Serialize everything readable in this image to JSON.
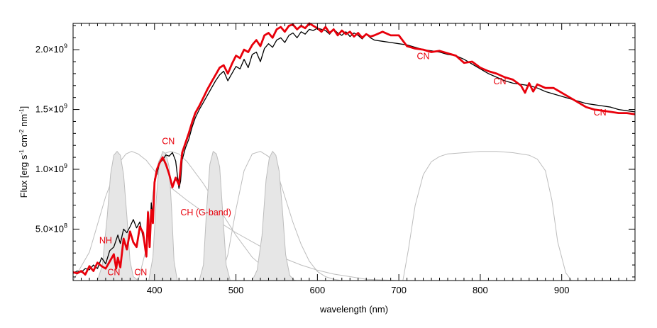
{
  "chart_data": {
    "type": "line",
    "xlabel": "wavelength (nm)",
    "ylabel": {
      "prefix": "Flux [erg s",
      "exp1": "-1",
      "mid1": " cm",
      "exp2": "-2",
      "mid2": " nm",
      "exp3": "-1",
      "suffix": "]"
    },
    "xlim": [
      300,
      990
    ],
    "ylim": [
      70000000,
      2220000000
    ],
    "x_ticks": [
      {
        "value": 400,
        "label": "400"
      },
      {
        "value": 500,
        "label": "500"
      },
      {
        "value": 600,
        "label": "600"
      },
      {
        "value": 700,
        "label": "700"
      },
      {
        "value": 800,
        "label": "800"
      },
      {
        "value": 900,
        "label": "900"
      }
    ],
    "y_ticks": [
      {
        "value": 500000000,
        "mantissa": "5.0×10",
        "exp": "8"
      },
      {
        "value": 1000000000,
        "mantissa": "1.0×10",
        "exp": "9"
      },
      {
        "value": 1500000000,
        "mantissa": "1.5×10",
        "exp": "9"
      },
      {
        "value": 2000000000,
        "mantissa": "2.0×10",
        "exp": "9"
      }
    ],
    "grid": false,
    "colors": {
      "model": "#e8000b",
      "observed": "#000000",
      "filters": "#bdbdbd",
      "filter_fill": "#e6e6e6"
    },
    "series": [
      {
        "color": "#000000",
        "x": [
          300,
          305,
          310,
          315,
          320,
          325,
          330,
          335,
          340,
          345,
          350,
          355,
          358,
          362,
          366,
          370,
          374,
          378,
          382,
          386,
          390,
          392,
          394,
          396,
          398,
          400,
          403,
          406,
          410,
          414,
          418,
          422,
          426,
          430,
          432,
          434,
          438,
          442,
          446,
          450,
          455,
          460,
          465,
          470,
          475,
          480,
          485,
          490,
          495,
          500,
          505,
          510,
          515,
          520,
          525,
          530,
          535,
          540,
          545,
          550,
          555,
          560,
          565,
          570,
          575,
          580,
          585,
          590,
          595,
          600,
          605,
          610,
          615,
          620,
          625,
          630,
          635,
          640,
          645,
          650,
          655,
          660,
          665,
          670,
          680,
          690,
          700,
          710,
          720,
          730,
          740,
          750,
          760,
          770,
          780,
          790,
          800,
          810,
          820,
          830,
          840,
          850,
          860,
          870,
          880,
          890,
          900,
          910,
          920,
          930,
          940,
          950,
          960,
          970,
          980,
          990
        ],
        "y": [
          130000000,
          150000000,
          140000000,
          170000000,
          160000000,
          200000000,
          170000000,
          260000000,
          210000000,
          320000000,
          350000000,
          450000000,
          380000000,
          500000000,
          470000000,
          520000000,
          580000000,
          510000000,
          560000000,
          430000000,
          300000000,
          650000000,
          380000000,
          720000000,
          600000000,
          920000000,
          960000000,
          1050000000,
          1080000000,
          1120000000,
          1110000000,
          1140000000,
          1070000000,
          840000000,
          900000000,
          1080000000,
          1180000000,
          1250000000,
          1350000000,
          1430000000,
          1500000000,
          1560000000,
          1620000000,
          1680000000,
          1740000000,
          1790000000,
          1820000000,
          1740000000,
          1800000000,
          1860000000,
          1840000000,
          1920000000,
          1850000000,
          1960000000,
          1980000000,
          1900000000,
          2010000000,
          2050000000,
          2020000000,
          2080000000,
          2100000000,
          2060000000,
          2120000000,
          2140000000,
          2100000000,
          2150000000,
          2130000000,
          2170000000,
          2160000000,
          2180000000,
          2170000000,
          2160000000,
          2130000000,
          2170000000,
          2140000000,
          2120000000,
          2150000000,
          2110000000,
          2140000000,
          2120000000,
          2090000000,
          2130000000,
          2100000000,
          2080000000,
          2070000000,
          2060000000,
          2050000000,
          2040000000,
          2020000000,
          2000000000,
          1990000000,
          1980000000,
          1960000000,
          1950000000,
          1920000000,
          1880000000,
          1840000000,
          1800000000,
          1770000000,
          1740000000,
          1720000000,
          1710000000,
          1700000000,
          1680000000,
          1650000000,
          1630000000,
          1610000000,
          1590000000,
          1570000000,
          1550000000,
          1540000000,
          1530000000,
          1520000000,
          1500000000,
          1490000000,
          1480000000
        ]
      },
      {
        "color": "#e8000b",
        "x": [
          300,
          305,
          310,
          315,
          320,
          325,
          330,
          335,
          340,
          345,
          350,
          353,
          355,
          358,
          362,
          366,
          370,
          374,
          378,
          382,
          386,
          390,
          392,
          394,
          396,
          398,
          400,
          403,
          406,
          410,
          414,
          418,
          422,
          426,
          430,
          432,
          434,
          438,
          442,
          446,
          450,
          455,
          460,
          465,
          470,
          475,
          480,
          485,
          490,
          495,
          500,
          505,
          510,
          515,
          520,
          525,
          530,
          535,
          540,
          545,
          550,
          555,
          560,
          565,
          570,
          575,
          580,
          585,
          590,
          595,
          600,
          605,
          610,
          615,
          620,
          625,
          630,
          635,
          640,
          645,
          650,
          655,
          660,
          665,
          670,
          680,
          690,
          700,
          710,
          720,
          730,
          740,
          750,
          760,
          770,
          780,
          790,
          800,
          810,
          820,
          830,
          840,
          850,
          855,
          860,
          865,
          870,
          880,
          890,
          900,
          910,
          920,
          930,
          940,
          950,
          960,
          970,
          980,
          990
        ],
        "y": [
          140000000,
          130000000,
          150000000,
          120000000,
          190000000,
          150000000,
          220000000,
          190000000,
          170000000,
          230000000,
          290000000,
          170000000,
          260000000,
          180000000,
          420000000,
          330000000,
          480000000,
          390000000,
          350000000,
          520000000,
          470000000,
          270000000,
          640000000,
          350000000,
          660000000,
          550000000,
          890000000,
          1000000000,
          1050000000,
          1100000000,
          1040000000,
          960000000,
          850000000,
          930000000,
          870000000,
          1010000000,
          1140000000,
          1220000000,
          1300000000,
          1390000000,
          1470000000,
          1530000000,
          1600000000,
          1670000000,
          1730000000,
          1790000000,
          1850000000,
          1870000000,
          1800000000,
          1880000000,
          1950000000,
          1930000000,
          2000000000,
          1980000000,
          2040000000,
          2080000000,
          2030000000,
          2120000000,
          2140000000,
          2100000000,
          2170000000,
          2190000000,
          2150000000,
          2200000000,
          2210000000,
          2170000000,
          2200000000,
          2180000000,
          2220000000,
          2200000000,
          2180000000,
          2150000000,
          2190000000,
          2140000000,
          2170000000,
          2120000000,
          2160000000,
          2130000000,
          2150000000,
          2110000000,
          2140000000,
          2100000000,
          2130000000,
          2110000000,
          2120000000,
          2150000000,
          2120000000,
          2120000000,
          2030000000,
          2010000000,
          2000000000,
          1980000000,
          1990000000,
          1970000000,
          1950000000,
          1890000000,
          1900000000,
          1850000000,
          1820000000,
          1800000000,
          1770000000,
          1750000000,
          1700000000,
          1640000000,
          1720000000,
          1650000000,
          1710000000,
          1680000000,
          1680000000,
          1640000000,
          1600000000,
          1560000000,
          1520000000,
          1500000000,
          1490000000,
          1480000000,
          1470000000,
          1470000000,
          1460000000
        ]
      }
    ],
    "filter_curves": [
      {
        "filled": false,
        "x": [
          300,
          320,
          340,
          355,
          365,
          372,
          380,
          390,
          400,
          420,
          440,
          460,
          480,
          500,
          520,
          540,
          560,
          580,
          600,
          620,
          640,
          660,
          680,
          700
        ],
        "y": [
          0.0,
          0.22,
          0.65,
          0.9,
          0.98,
          1.0,
          0.98,
          0.93,
          0.85,
          0.72,
          0.62,
          0.53,
          0.45,
          0.37,
          0.3,
          0.23,
          0.17,
          0.12,
          0.08,
          0.05,
          0.03,
          0.01,
          0.005,
          0.0
        ]
      },
      {
        "filled": false,
        "x": [
          380,
          390,
          398,
          405,
          410,
          420,
          430,
          440,
          460,
          480,
          500,
          520,
          540,
          560,
          575
        ],
        "y": [
          0.0,
          0.25,
          0.68,
          0.92,
          0.98,
          1.0,
          0.98,
          0.92,
          0.75,
          0.55,
          0.35,
          0.18,
          0.07,
          0.01,
          0.0
        ]
      },
      {
        "filled": false,
        "x": [
          480,
          490,
          500,
          510,
          520,
          530,
          540,
          550,
          560,
          570,
          580,
          590,
          600,
          610,
          620,
          630
        ],
        "y": [
          0.0,
          0.2,
          0.55,
          0.85,
          0.98,
          1.0,
          0.96,
          0.85,
          0.65,
          0.45,
          0.28,
          0.15,
          0.07,
          0.03,
          0.01,
          0.0
        ]
      },
      {
        "filled": false,
        "x": [
          705,
          712,
          720,
          730,
          740,
          750,
          760,
          780,
          800,
          820,
          840,
          860,
          870,
          880,
          888,
          895,
          905,
          912
        ],
        "y": [
          0.0,
          0.25,
          0.58,
          0.82,
          0.92,
          0.96,
          0.98,
          0.99,
          1.0,
          1.0,
          0.99,
          0.97,
          0.94,
          0.85,
          0.62,
          0.3,
          0.06,
          0.0
        ]
      },
      {
        "filled": true,
        "x": [
          330,
          336,
          342,
          346,
          350,
          354,
          358,
          362,
          366,
          370,
          374,
          380
        ],
        "y": [
          0.0,
          0.12,
          0.5,
          0.82,
          0.97,
          1.0,
          0.97,
          0.82,
          0.5,
          0.15,
          0.03,
          0.0
        ]
      },
      {
        "filled": true,
        "x": [
          393,
          398,
          402,
          406,
          410,
          414,
          418,
          421,
          424,
          428
        ],
        "y": [
          0.0,
          0.18,
          0.62,
          0.92,
          1.0,
          0.98,
          0.88,
          0.55,
          0.15,
          0.0
        ]
      },
      {
        "filled": true,
        "x": [
          455,
          460,
          464,
          468,
          472,
          476,
          480,
          484,
          488,
          493
        ],
        "y": [
          0.0,
          0.12,
          0.55,
          0.9,
          1.0,
          0.98,
          0.88,
          0.5,
          0.12,
          0.0
        ]
      },
      {
        "filled": true,
        "x": [
          520,
          526,
          532,
          537,
          541,
          545,
          549,
          553,
          557,
          561,
          566,
          572
        ],
        "y": [
          0.0,
          0.08,
          0.35,
          0.78,
          0.95,
          1.0,
          0.97,
          0.85,
          0.55,
          0.2,
          0.04,
          0.0
        ]
      }
    ],
    "filter_peak": 1150000000,
    "annotations": [
      {
        "text": "NH",
        "x": 340,
        "y": 380000000
      },
      {
        "text": "CN",
        "x": 350,
        "y": 115000000
      },
      {
        "text": "CN",
        "x": 383,
        "y": 115000000
      },
      {
        "text": "CN",
        "x": 417,
        "y": 1210000000
      },
      {
        "text": "CH (G-band)",
        "x": 463,
        "y": 615000000
      },
      {
        "text": "CN",
        "x": 730,
        "y": 1920000000
      },
      {
        "text": "CN",
        "x": 824,
        "y": 1710000000
      },
      {
        "text": "CN",
        "x": 947,
        "y": 1450000000
      }
    ]
  }
}
